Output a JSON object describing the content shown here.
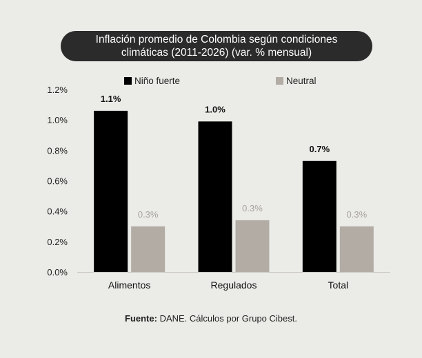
{
  "title": {
    "line1": "Inflación promedio de Colombia según condiciones",
    "line2": "climáticas (2011-2026) (var. % mensual)"
  },
  "source": {
    "label": "Fuente:",
    "text": " DANE. Cálculos por Grupo Cibest."
  },
  "colors": {
    "background": "#ebebe8",
    "title_bg": "#2b2b2b",
    "nino_fuerte": "#000000",
    "neutral": "#b2aca4",
    "neutral_label": "#a9a39b"
  },
  "chart_data": {
    "type": "bar",
    "categories": [
      "Alimentos",
      "Regulados",
      "Total"
    ],
    "series": [
      {
        "name": "Niño fuerte",
        "values": [
          1.06,
          0.99,
          0.73
        ],
        "labels": [
          "1.1%",
          "1.0%",
          "0.7%"
        ]
      },
      {
        "name": "Neutral",
        "values": [
          0.3,
          0.34,
          0.3
        ],
        "labels": [
          "0.3%",
          "0.3%",
          "0.3%"
        ]
      }
    ],
    "ylim": [
      0,
      1.2
    ],
    "yticks": [
      0.0,
      0.2,
      0.4,
      0.6,
      0.8,
      1.0,
      1.2
    ],
    "ytick_labels": [
      "0.0%",
      "0.2%",
      "0.4%",
      "0.6%",
      "0.8%",
      "1.0%",
      "1.2%"
    ],
    "grid": false,
    "legend_position": "top"
  }
}
